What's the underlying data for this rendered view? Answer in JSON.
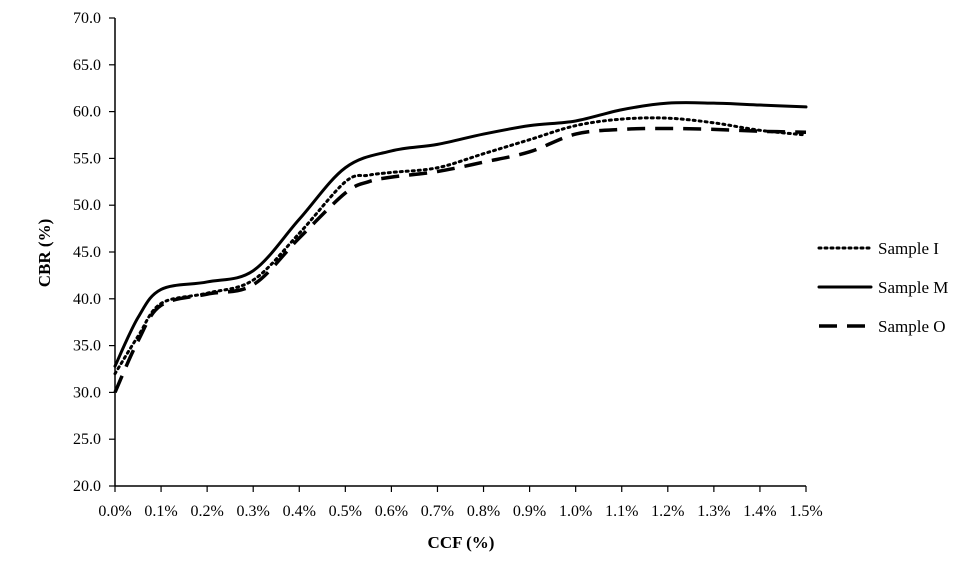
{
  "chart_data": {
    "type": "line",
    "title": "",
    "xlabel": "CCF (%)",
    "ylabel": "CBR (%)",
    "x": [
      0.0,
      0.1,
      0.2,
      0.3,
      0.4,
      0.5,
      0.6,
      0.7,
      0.8,
      0.9,
      1.0,
      1.1,
      1.2,
      1.3,
      1.4,
      1.5
    ],
    "x_tick_labels": [
      "0.0%",
      "0.1%",
      "0.2%",
      "0.3%",
      "0.4%",
      "0.5%",
      "0.6%",
      "0.7%",
      "0.8%",
      "0.9%",
      "1.0%",
      "1.1%",
      "1.2%",
      "1.3%",
      "1.4%",
      "1.5%"
    ],
    "xlim": [
      0.0,
      1.5
    ],
    "ylim": [
      20.0,
      70.0
    ],
    "y_ticks": [
      20.0,
      25.0,
      30.0,
      35.0,
      40.0,
      45.0,
      50.0,
      55.0,
      60.0,
      65.0,
      70.0
    ],
    "y_tick_labels": [
      "20.0",
      "25.0",
      "30.0",
      "35.0",
      "40.0",
      "45.0",
      "50.0",
      "55.0",
      "60.0",
      "65.0",
      "70.0"
    ],
    "grid": false,
    "legend_position": "right",
    "series": [
      {
        "name": "Sample I",
        "style": "dotted",
        "color": "#000000",
        "x": [
          0.0,
          0.05,
          0.1,
          0.2,
          0.3,
          0.4,
          0.5,
          0.55,
          0.6,
          0.7,
          0.8,
          0.9,
          1.0,
          1.1,
          1.2,
          1.3,
          1.4,
          1.5
        ],
        "values": [
          32.0,
          36.0,
          39.5,
          40.6,
          42.0,
          47.0,
          52.5,
          53.2,
          53.5,
          54.0,
          55.5,
          57.0,
          58.5,
          59.2,
          59.3,
          58.8,
          58.0,
          57.5
        ]
      },
      {
        "name": "Sample M",
        "style": "solid",
        "color": "#000000",
        "x": [
          0.0,
          0.05,
          0.1,
          0.2,
          0.3,
          0.4,
          0.5,
          0.6,
          0.7,
          0.8,
          0.9,
          1.0,
          1.1,
          1.2,
          1.3,
          1.4,
          1.5
        ],
        "values": [
          32.8,
          38.0,
          41.0,
          41.8,
          43.0,
          48.5,
          54.0,
          55.8,
          56.5,
          57.6,
          58.5,
          59.0,
          60.2,
          60.9,
          60.9,
          60.7,
          60.5
        ]
      },
      {
        "name": "Sample O",
        "style": "dashed",
        "color": "#000000",
        "x": [
          0.0,
          0.05,
          0.1,
          0.2,
          0.3,
          0.4,
          0.5,
          0.55,
          0.6,
          0.7,
          0.8,
          0.9,
          1.0,
          1.1,
          1.2,
          1.3,
          1.4,
          1.5
        ],
        "values": [
          30.0,
          35.5,
          39.3,
          40.5,
          41.5,
          46.5,
          51.3,
          52.5,
          53.0,
          53.6,
          54.6,
          55.7,
          57.6,
          58.1,
          58.2,
          58.1,
          57.9,
          57.8
        ]
      }
    ]
  }
}
